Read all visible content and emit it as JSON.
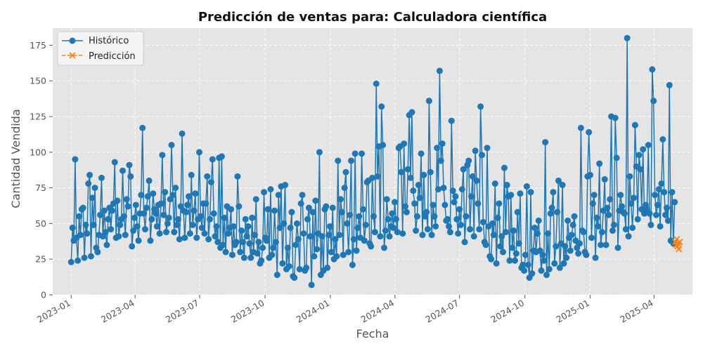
{
  "chart_data": {
    "type": "line",
    "title": "Predicción de ventas para: Calculadora científica",
    "xlabel": "Fecha",
    "ylabel": "Cantidad Vendida",
    "ylim": [
      0,
      187
    ],
    "xlim": [
      "2022-12-06",
      "2025-05-25"
    ],
    "grid": true,
    "legend_position": "top-left",
    "background": "#e5e5e5",
    "x_ticks": [
      "2023-01",
      "2023-04",
      "2023-07",
      "2023-10",
      "2024-01",
      "2024-04",
      "2024-07",
      "2024-10",
      "2025-01",
      "2025-04"
    ],
    "y_ticks": [
      0,
      25,
      50,
      75,
      100,
      125,
      150,
      175
    ],
    "series": [
      {
        "name": "Histórico",
        "color": "#1f77b4",
        "marker": "circle",
        "line_style": "solid",
        "x_start": "2023-01-01",
        "x_end": "2025-04-30",
        "values": [
          23,
          47,
          38,
          95,
          40,
          24,
          55,
          42,
          60,
          61,
          26,
          49,
          43,
          78,
          84,
          27,
          68,
          49,
          75,
          33,
          30,
          42,
          56,
          82,
          41,
          59,
          44,
          35,
          53,
          61,
          46,
          59,
          64,
          93,
          40,
          66,
          41,
          49,
          53,
          87,
          55,
          42,
          67,
          62,
          91,
          83,
          34,
          45,
          54,
          63,
          48,
          38,
          57,
          70,
          117,
          57,
          46,
          61,
          69,
          80,
          38,
          53,
          71,
          60,
          57,
          48,
          63,
          43,
          64,
          98,
          56,
          72,
          44,
          50,
          54,
          67,
          105,
          70,
          44,
          75,
          49,
          53,
          39,
          62,
          113,
          59,
          40,
          58,
          63,
          69,
          43,
          84,
          49,
          59,
          71,
          40,
          53,
          100,
          55,
          47,
          64,
          43,
          64,
          83,
          39,
          53,
          79,
          95,
          57,
          41,
          48,
          37,
          96,
          33,
          97,
          35,
          54,
          30,
          62,
          43,
          47,
          60,
          28,
          48,
          35,
          37,
          83,
          62,
          30,
          45,
          37,
          26,
          53,
          41,
          48,
          36,
          26,
          54,
          30,
          42,
          67,
          29,
          37,
          22,
          24,
          33,
          72,
          40,
          38,
          60,
          26,
          74,
          28,
          33,
          59,
          37,
          14,
          70,
          47,
          76,
          22,
          50,
          77,
          18,
          33,
          20,
          47,
          58,
          13,
          12,
          35,
          50,
          39,
          18,
          64,
          70,
          43,
          17,
          19,
          53,
          61,
          41,
          7,
          58,
          27,
          66,
          32,
          43,
          100,
          14,
          41,
          17,
          60,
          62,
          19,
          42,
          48,
          30,
          61,
          25,
          39,
          27,
          94,
          42,
          67,
          58,
          28,
          75,
          86,
          50,
          30,
          56,
          94,
          21,
          39,
          99,
          31,
          47,
          55,
          40,
          99,
          60,
          38,
          49,
          79,
          80,
          36,
          34,
          82,
          55,
          44,
          148,
          83,
          104,
          41,
          132,
          105,
          33,
          45,
          67,
          53,
          41,
          48,
          57,
          47,
          65,
          53,
          44,
          103,
          104,
          86,
          43,
          106,
          62,
          58,
          88,
          126,
          82,
          128,
          73,
          64,
          45,
          55,
          77,
          68,
          99,
          42,
          84,
          55,
          58,
          46,
          136,
          86,
          42,
          63,
          55,
          48,
          103,
          74,
          157,
          94,
          106,
          75,
          63,
          52,
          53,
          48,
          44,
          122,
          73,
          65,
          69,
          53,
          43,
          60,
          49,
          74,
          88,
          37,
          55,
          91,
          94,
          46,
          69,
          83,
          41,
          101,
          80,
          64,
          46,
          132,
          98,
          51,
          37,
          35,
          103,
          48,
          27,
          25,
          50,
          42,
          78,
          22,
          54,
          64,
          34,
          41,
          30,
          89,
          44,
          77,
          69,
          24,
          70,
          33,
          45,
          24,
          29,
          58,
          36,
          71,
          19,
          21,
          17,
          28,
          76,
          21,
          12,
          72,
          15,
          31,
          47,
          30,
          43,
          52,
          31,
          17,
          28,
          24,
          107,
          14,
          43,
          18,
          57,
          61,
          72,
          22,
          34,
          58,
          80,
          19,
          36,
          77,
          22,
          34,
          26,
          52,
          40,
          31,
          42,
          49,
          55,
          38,
          33,
          29,
          36,
          117,
          45,
          44,
          30,
          28,
          83,
          114,
          84,
          40,
          64,
          70,
          26,
          54,
          48,
          92,
          35,
          44,
          59,
          81,
          35,
          61,
          56,
          67,
          125,
          45,
          49,
          124,
          96,
          33,
          59,
          70,
          62,
          58,
          57,
          46,
          180,
          41,
          83,
          64,
          47,
          68,
          119,
          90,
          53,
          98,
          88,
          60,
          102,
          57,
          63,
          60,
          105,
          57,
          49,
          158,
          136,
          70,
          56,
          63,
          74,
          48,
          78,
          109,
          72,
          56,
          61,
          52,
          147,
          38,
          72,
          36,
          65
        ]
      },
      {
        "name": "Predicción",
        "color": "#ff7f0e",
        "marker": "x",
        "line_style": "dashed",
        "x": [
          "2025-05-01",
          "2025-05-02",
          "2025-05-03",
          "2025-05-04",
          "2025-05-05",
          "2025-05-06",
          "2025-05-07"
        ],
        "values": [
          37,
          35,
          39,
          34,
          36,
          32,
          37
        ]
      }
    ]
  }
}
